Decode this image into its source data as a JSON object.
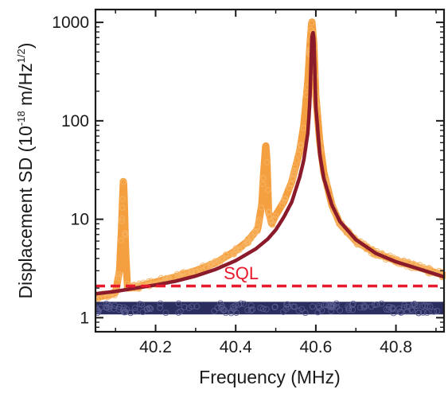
{
  "chart_data": {
    "type": "line",
    "xlabel": "Frequency (MHz)",
    "ylabel_main": "Displacement SD (10",
    "ylabel_exp1": "-18",
    "ylabel_unit": " m/Hz",
    "ylabel_exp2": "1/2",
    "ylabel_close": ")",
    "xlim": [
      40.05,
      40.92
    ],
    "ylim": [
      0.72,
      1350
    ],
    "y_scale": "log",
    "x_ticks": [
      40.2,
      40.4,
      40.6,
      40.8
    ],
    "x_tick_labels": [
      "40.2",
      "40.4",
      "40.6",
      "40.8"
    ],
    "y_ticks": [
      1,
      10,
      100,
      1000
    ],
    "y_tick_labels": [
      "1",
      "10",
      "100",
      "1000"
    ],
    "grid": false,
    "colors": {
      "measured": "#f5a040",
      "fit": "#8b1a2b",
      "sql": "#e8192c",
      "noise": "#2b2d5e"
    },
    "annotations": [
      {
        "text": "SQL",
        "x": 40.37,
        "y": 2.45
      }
    ],
    "series": [
      {
        "role": "measured",
        "style": "scatter-thick",
        "x": [
          40.05,
          40.08,
          40.1,
          40.11,
          40.115,
          40.118,
          40.12,
          40.122,
          40.125,
          40.13,
          40.15,
          40.2,
          40.25,
          40.3,
          40.35,
          40.4,
          40.43,
          40.455,
          40.465,
          40.47,
          40.475,
          40.478,
          40.482,
          40.49,
          40.5,
          40.52,
          40.54,
          40.56,
          40.57,
          40.58,
          40.585,
          40.59,
          40.595,
          40.6,
          40.61,
          40.62,
          40.64,
          40.66,
          40.7,
          40.75,
          40.8,
          40.85,
          40.92
        ],
        "y": [
          1.6,
          1.7,
          1.8,
          3,
          8,
          18,
          26,
          15,
          5,
          2,
          2.05,
          2.3,
          2.6,
          3,
          3.6,
          4.8,
          6,
          8,
          14,
          30,
          58,
          40,
          12,
          9,
          11,
          15,
          24,
          50,
          90,
          250,
          560,
          1050,
          600,
          180,
          60,
          30,
          14,
          9,
          6,
          4.5,
          3.8,
          3.3,
          2.7
        ]
      },
      {
        "role": "fit",
        "style": "line",
        "x": [
          40.05,
          40.1,
          40.15,
          40.2,
          40.25,
          40.3,
          40.35,
          40.4,
          40.45,
          40.48,
          40.5,
          40.52,
          40.54,
          40.56,
          40.57,
          40.58,
          40.585,
          40.59,
          40.593,
          40.595,
          40.6,
          40.61,
          40.62,
          40.64,
          40.66,
          40.7,
          40.75,
          40.8,
          40.85,
          40.92
        ],
        "y": [
          1.75,
          1.85,
          2,
          2.15,
          2.35,
          2.65,
          3.1,
          3.8,
          5,
          6.3,
          7.8,
          10.5,
          15,
          27,
          40,
          75,
          150,
          700,
          800,
          700,
          140,
          45,
          26,
          14,
          9.5,
          6.2,
          4.5,
          3.7,
          3.2,
          2.6
        ]
      },
      {
        "role": "sql",
        "style": "dashed",
        "x": [
          40.05,
          40.92
        ],
        "y": [
          2.1,
          2.1
        ]
      },
      {
        "role": "noise",
        "style": "band",
        "x": [
          40.05,
          40.92
        ],
        "y": [
          1.25,
          1.25
        ],
        "band_low": 1.08,
        "band_high": 1.45
      }
    ]
  }
}
